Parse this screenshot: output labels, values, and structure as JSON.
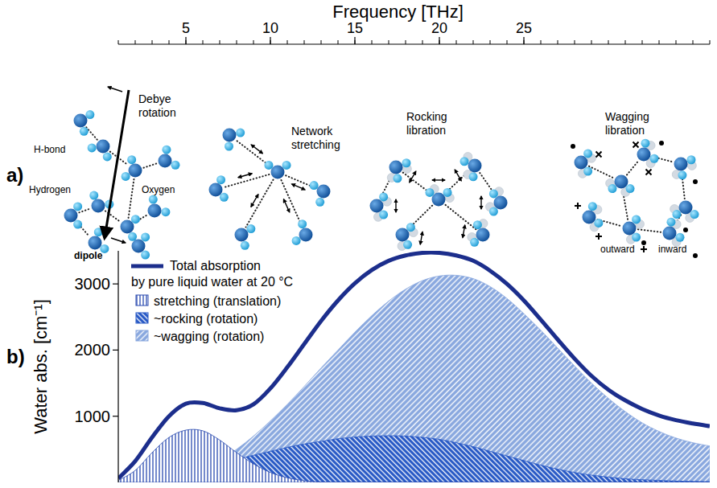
{
  "diagram": {
    "panel_label": "a)",
    "panels": [
      {
        "title": "Debye rotation",
        "labels": [
          "H-bond",
          "Oxygen",
          "Hydrogen",
          "dipole"
        ]
      },
      {
        "title": "Network stretching"
      },
      {
        "title": "Rocking libration"
      },
      {
        "title": "Wagging libration",
        "labels": [
          "outward",
          "inward"
        ]
      }
    ]
  },
  "chart_data": {
    "type": "area",
    "panel_label": "b)",
    "xlabel": "Frequency [THz]",
    "ylabel": "Water abs. [cm⁻¹]",
    "legend_subtitle": "by pure liquid water at 20 °C",
    "x": [
      1,
      2,
      3,
      4,
      5,
      6,
      7,
      8,
      9,
      10,
      11,
      12,
      13,
      14,
      15,
      16,
      17,
      18,
      19,
      20,
      21,
      22,
      23,
      24,
      25,
      26,
      27,
      28,
      29,
      30,
      31,
      32,
      33,
      34,
      35,
      36
    ],
    "series": [
      {
        "name": "Total absorption",
        "type": "line",
        "color": "#1c2e8c",
        "values": [
          60,
          320,
          680,
          1000,
          1190,
          1200,
          1120,
          1090,
          1180,
          1420,
          1740,
          2090,
          2440,
          2750,
          3010,
          3210,
          3350,
          3430,
          3470,
          3470,
          3430,
          3350,
          3200,
          3000,
          2750,
          2460,
          2160,
          1870,
          1610,
          1400,
          1240,
          1110,
          1010,
          940,
          890,
          850
        ]
      },
      {
        "name": "stretching (translation)",
        "type": "area",
        "color": "#2a4ab0",
        "values": [
          30,
          180,
          450,
          680,
          790,
          780,
          640,
          450,
          280,
          150,
          70,
          25,
          5,
          0,
          0,
          0,
          0,
          0,
          0,
          0,
          0,
          0,
          0,
          0,
          0,
          0,
          0,
          0,
          0,
          0,
          0,
          0,
          0,
          0,
          0,
          0
        ]
      },
      {
        "name": "~rocking (rotation)",
        "type": "area",
        "color": "#2456c4",
        "values": [
          0,
          20,
          60,
          110,
          170,
          230,
          290,
          350,
          410,
          470,
          530,
          580,
          620,
          660,
          685,
          700,
          705,
          700,
          680,
          650,
          600,
          540,
          470,
          400,
          330,
          260,
          200,
          150,
          110,
          80,
          55,
          40,
          30,
          20,
          15,
          10
        ]
      },
      {
        "name": "~wagging (rotation)",
        "type": "area",
        "color": "#87a6de",
        "values": [
          0,
          0,
          10,
          40,
          100,
          200,
          330,
          500,
          700,
          930,
          1180,
          1450,
          1730,
          2000,
          2270,
          2520,
          2740,
          2920,
          3050,
          3120,
          3130,
          3080,
          2960,
          2780,
          2550,
          2300,
          2030,
          1760,
          1500,
          1270,
          1070,
          900,
          770,
          670,
          600,
          550
        ]
      }
    ],
    "xlim": [
      1,
      36
    ],
    "xticks": [
      5,
      10,
      15,
      20,
      25
    ],
    "ylim": [
      0,
      3500
    ],
    "yticks": [
      1000,
      2000,
      3000
    ],
    "grid": false,
    "legend": "upper left"
  }
}
